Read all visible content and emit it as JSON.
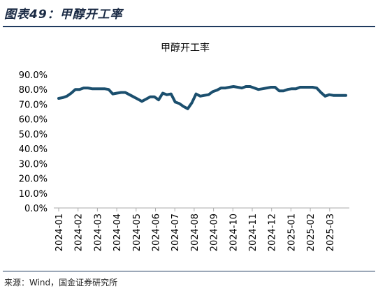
{
  "figure": {
    "title": "图表49：甲醇开工率",
    "source": "来源：Wind，国金证券研究所"
  },
  "chart_data": {
    "type": "line",
    "title": "甲醇开工率",
    "xlabel": "",
    "ylabel": "",
    "ylim": [
      0,
      90
    ],
    "y_ticks": [
      "0.0%",
      "10.0%",
      "20.0%",
      "30.0%",
      "40.0%",
      "50.0%",
      "60.0%",
      "70.0%",
      "80.0%",
      "90.0%"
    ],
    "x_tick_labels": [
      "2024-01",
      "2024-02",
      "2024-03",
      "2024-04",
      "2024-05",
      "2024-06",
      "2024-07",
      "2024-08",
      "2024-09",
      "2024-10",
      "2024-11",
      "2024-12",
      "2025-01",
      "2025-02",
      "2025-03"
    ],
    "grid": false,
    "legend": "none",
    "series_color": "#1b4f6e",
    "series": [
      {
        "name": "",
        "values": [
          74.0,
          74.5,
          75.5,
          77.5,
          80.0,
          80.0,
          81.0,
          81.0,
          80.5,
          80.5,
          80.5,
          80.5,
          80.0,
          77.0,
          77.5,
          78.0,
          78.0,
          76.5,
          75.0,
          73.5,
          72.0,
          73.5,
          75.0,
          75.0,
          73.0,
          77.5,
          76.5,
          77.0,
          71.5,
          70.5,
          68.5,
          67.0,
          71.0,
          77.0,
          75.5,
          76.0,
          76.5,
          78.5,
          79.5,
          81.0,
          81.0,
          81.5,
          82.0,
          81.5,
          81.0,
          82.0,
          82.0,
          81.0,
          80.0,
          80.5,
          81.0,
          81.5,
          81.5,
          79.0,
          79.0,
          80.0,
          80.5,
          80.5,
          81.5,
          81.5,
          81.5,
          81.5,
          81.0,
          78.0,
          75.5,
          76.5,
          76.0,
          76.0,
          76.0,
          76.0
        ]
      }
    ]
  }
}
